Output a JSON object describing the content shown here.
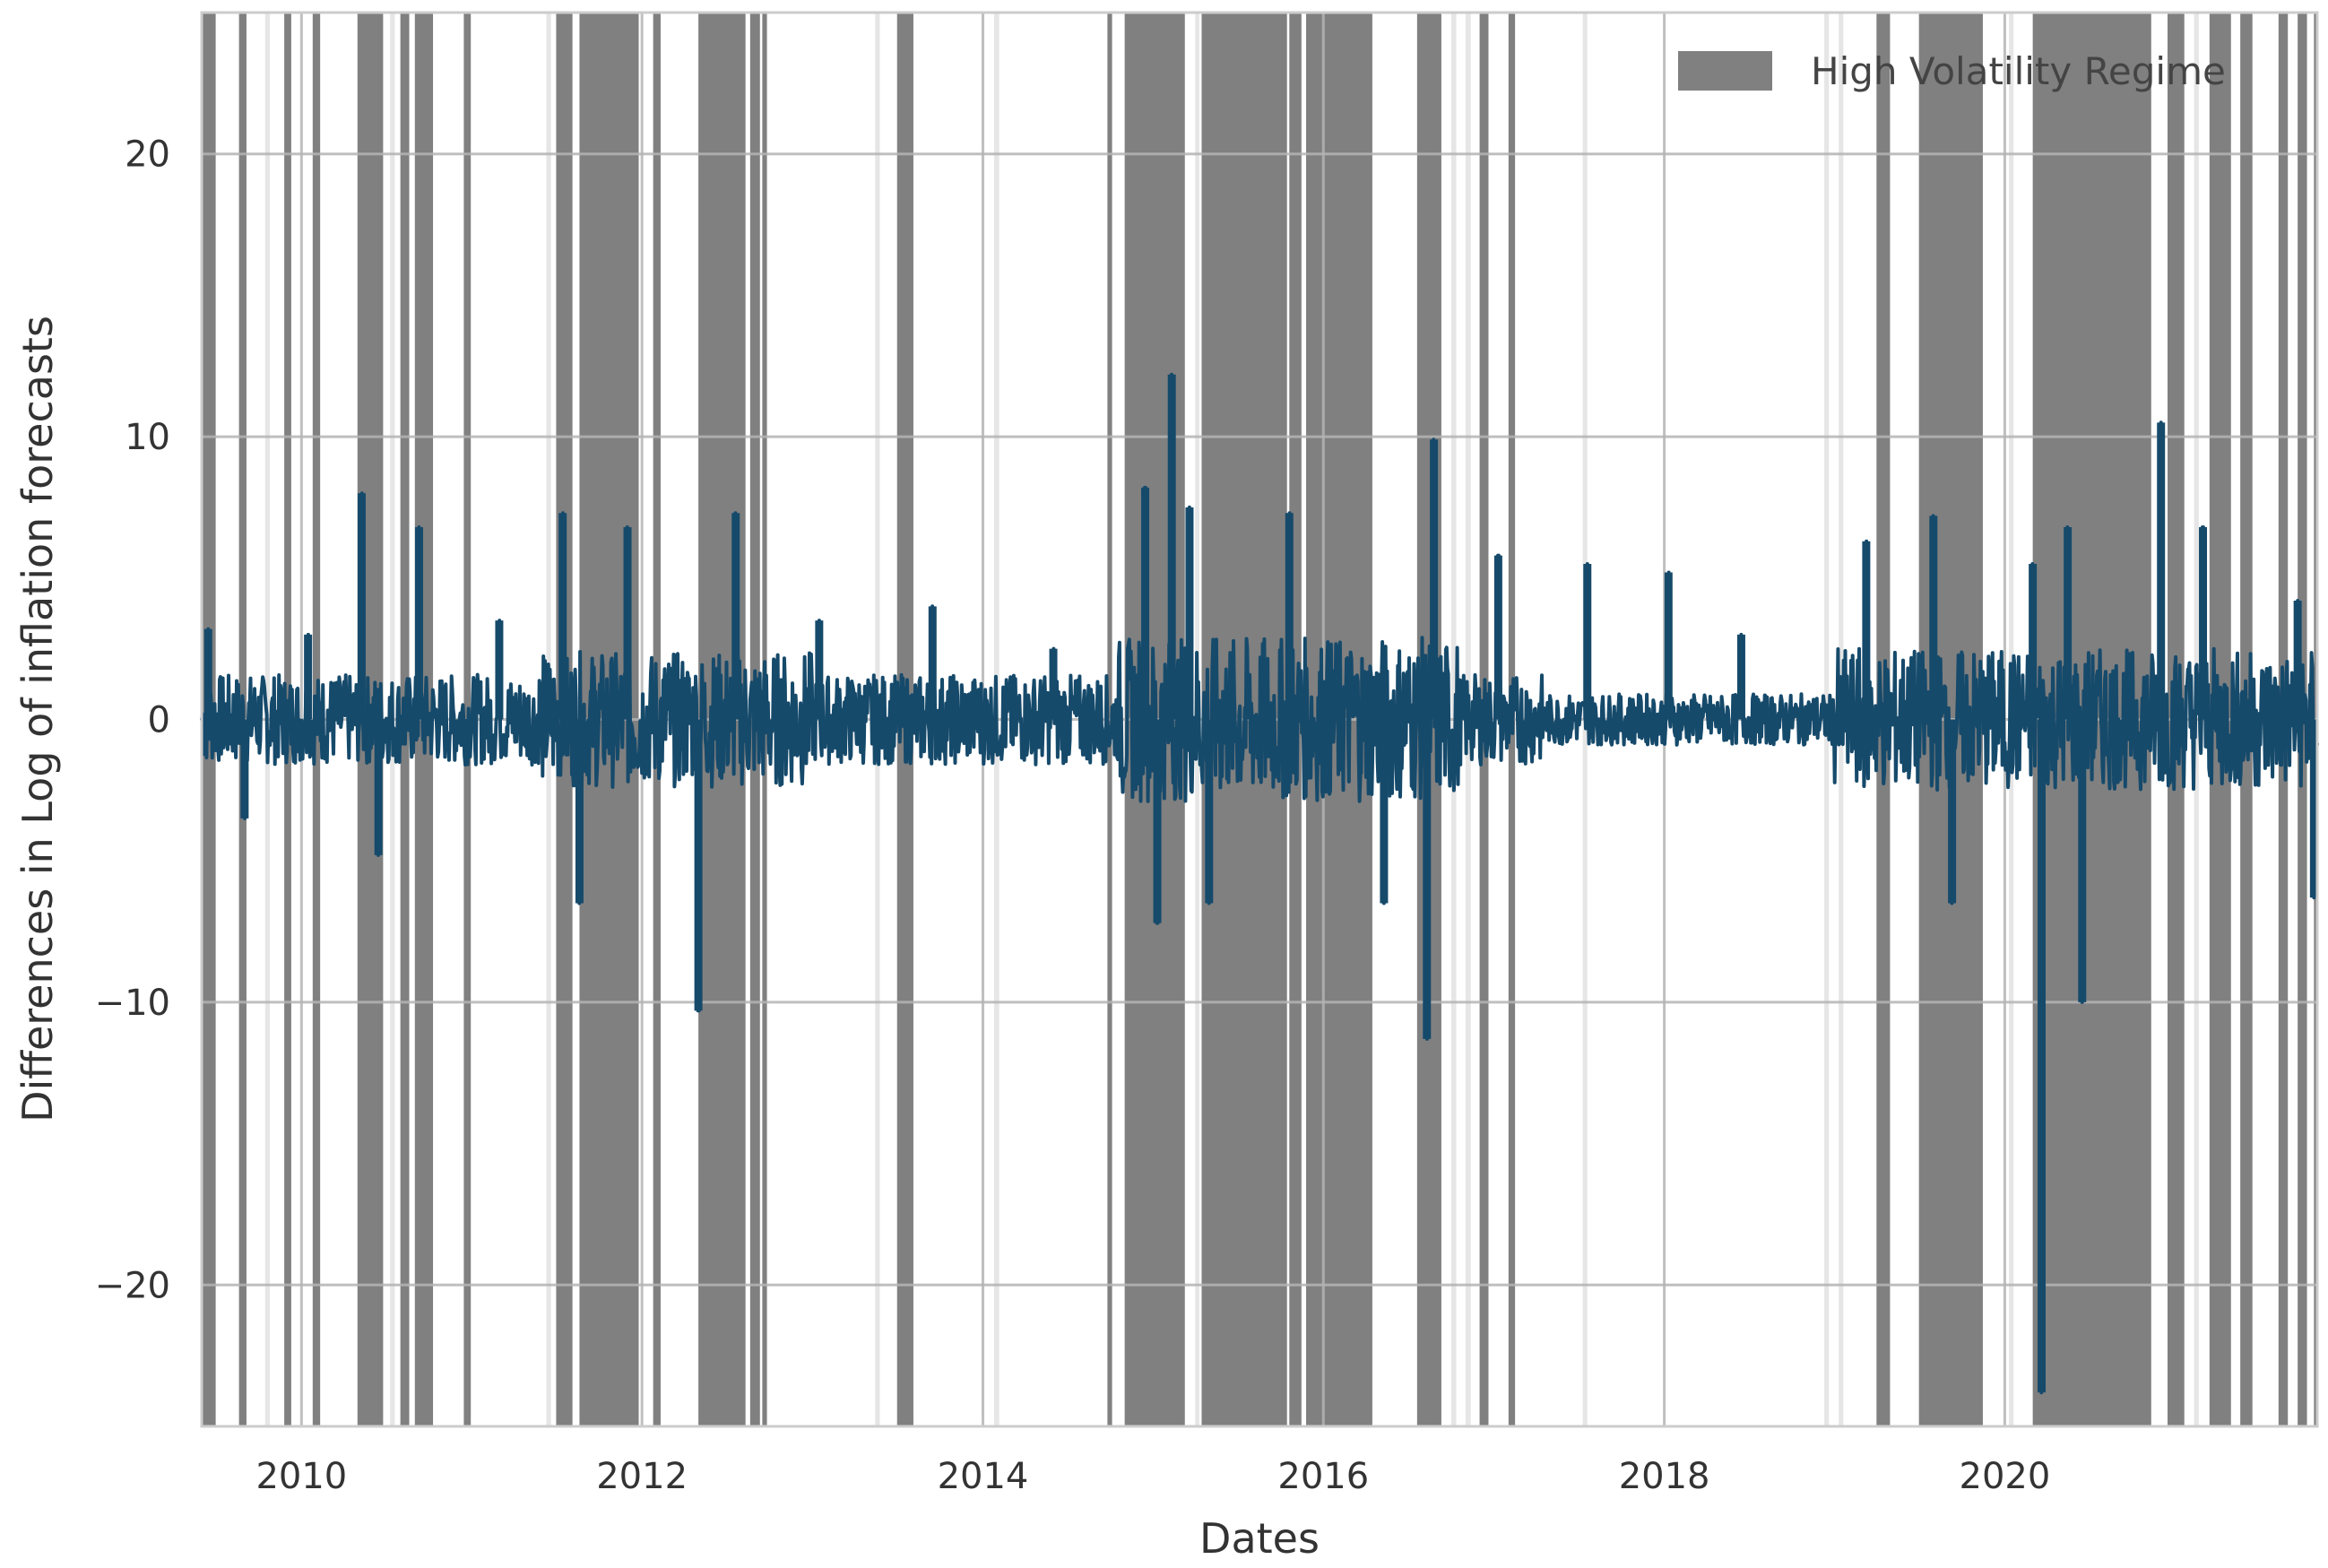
{
  "chart_data": {
    "type": "line",
    "title": "",
    "xlabel": "Dates",
    "ylabel": "Differences in Log of inflation forecasts",
    "x_range": [
      "2009-06-01",
      "2021-11-01"
    ],
    "ylim": [
      -25,
      25
    ],
    "x_ticks": [
      "2010",
      "2012",
      "2014",
      "2016",
      "2018",
      "2020"
    ],
    "y_ticks": [
      -20,
      -10,
      0,
      10,
      20
    ],
    "y_tick_labels": [
      "−20",
      "−10",
      "0",
      "10",
      "20"
    ],
    "grid": true,
    "legend_position": "top-right",
    "series": [
      {
        "name": "",
        "color": "#164a6b",
        "description_points": [
          {
            "x": "2009-06-15",
            "y": 3.2
          },
          {
            "x": "2009-09-01",
            "y": -3.5
          },
          {
            "x": "2010-01-15",
            "y": 3.0
          },
          {
            "x": "2010-05-10",
            "y": 8.0
          },
          {
            "x": "2010-06-15",
            "y": -4.8
          },
          {
            "x": "2010-09-10",
            "y": 6.8
          },
          {
            "x": "2011-03-01",
            "y": 3.5
          },
          {
            "x": "2011-07-15",
            "y": 7.3
          },
          {
            "x": "2011-08-20",
            "y": -6.5
          },
          {
            "x": "2011-12-01",
            "y": 6.8
          },
          {
            "x": "2012-05-01",
            "y": -10.3
          },
          {
            "x": "2012-07-20",
            "y": 7.3
          },
          {
            "x": "2013-01-15",
            "y": 3.5
          },
          {
            "x": "2013-09-15",
            "y": 4.0
          },
          {
            "x": "2014-06-01",
            "y": 2.5
          },
          {
            "x": "2014-12-15",
            "y": 8.2
          },
          {
            "x": "2015-01-10",
            "y": -7.2
          },
          {
            "x": "2015-02-10",
            "y": 12.2
          },
          {
            "x": "2015-03-20",
            "y": 7.5
          },
          {
            "x": "2015-05-01",
            "y": -6.5
          },
          {
            "x": "2015-10-20",
            "y": 7.3
          },
          {
            "x": "2016-05-10",
            "y": -6.5
          },
          {
            "x": "2016-08-10",
            "y": -11.3
          },
          {
            "x": "2016-08-25",
            "y": 9.9
          },
          {
            "x": "2017-01-10",
            "y": 5.8
          },
          {
            "x": "2017-07-20",
            "y": 5.5
          },
          {
            "x": "2018-01-10",
            "y": 5.2
          },
          {
            "x": "2018-06-15",
            "y": 3.0
          },
          {
            "x": "2019-03-10",
            "y": 6.3
          },
          {
            "x": "2019-08-01",
            "y": 7.2
          },
          {
            "x": "2019-09-10",
            "y": -6.5
          },
          {
            "x": "2020-03-01",
            "y": 5.5
          },
          {
            "x": "2020-03-20",
            "y": -23.8
          },
          {
            "x": "2020-05-15",
            "y": 6.8
          },
          {
            "x": "2020-06-15",
            "y": -10.0
          },
          {
            "x": "2020-12-01",
            "y": 10.5
          },
          {
            "x": "2021-03-01",
            "y": 6.8
          },
          {
            "x": "2021-09-20",
            "y": 4.2
          },
          {
            "x": "2021-10-25",
            "y": -6.3
          }
        ]
      }
    ],
    "regimes": {
      "name": "High Volatility Regime",
      "color": "#808080",
      "periods": [
        [
          "2009-06-01",
          "2009-07-01"
        ],
        [
          "2009-08-20",
          "2009-09-05"
        ],
        [
          "2009-11-25",
          "2009-12-10"
        ],
        [
          "2010-01-25",
          "2010-02-10"
        ],
        [
          "2010-05-01",
          "2010-06-25"
        ],
        [
          "2010-08-01",
          "2010-08-20"
        ],
        [
          "2010-09-01",
          "2010-10-10"
        ],
        [
          "2010-12-15",
          "2010-12-30"
        ],
        [
          "2011-07-01",
          "2011-08-05"
        ],
        [
          "2011-08-20",
          "2011-12-25"
        ],
        [
          "2012-01-25",
          "2012-02-10"
        ],
        [
          "2012-05-01",
          "2012-08-10"
        ],
        [
          "2012-08-20",
          "2012-09-10"
        ],
        [
          "2012-09-15",
          "2012-09-25"
        ],
        [
          "2013-07-01",
          "2013-08-05"
        ],
        [
          "2014-09-25",
          "2014-10-05"
        ],
        [
          "2014-11-01",
          "2015-03-10"
        ],
        [
          "2015-04-15",
          "2015-10-15"
        ],
        [
          "2015-10-20",
          "2015-11-15"
        ],
        [
          "2015-11-25",
          "2016-04-15"
        ],
        [
          "2016-07-20",
          "2016-09-10"
        ],
        [
          "2016-12-01",
          "2016-12-20"
        ],
        [
          "2017-02-01",
          "2017-02-15"
        ],
        [
          "2019-04-01",
          "2019-04-30"
        ],
        [
          "2019-07-01",
          "2019-11-15"
        ],
        [
          "2020-03-01",
          "2020-11-10"
        ],
        [
          "2020-12-15",
          "2021-01-20"
        ],
        [
          "2021-03-15",
          "2021-04-30"
        ],
        [
          "2021-05-20",
          "2021-06-15"
        ],
        [
          "2021-08-10",
          "2021-08-30"
        ],
        [
          "2021-09-20",
          "2021-10-10"
        ],
        [
          "2021-10-25",
          "2021-11-01"
        ]
      ]
    },
    "light_bands": [
      [
        "2009-10-15",
        "2009-10-25"
      ],
      [
        "2010-07-10",
        "2010-07-20"
      ],
      [
        "2011-06-10",
        "2011-06-20"
      ],
      [
        "2013-05-15",
        "2013-05-25"
      ],
      [
        "2014-01-25",
        "2014-02-05"
      ],
      [
        "2015-04-01",
        "2015-04-10"
      ],
      [
        "2016-10-01",
        "2016-10-12"
      ],
      [
        "2016-11-01",
        "2016-11-12"
      ],
      [
        "2017-07-10",
        "2017-07-20"
      ],
      [
        "2018-12-10",
        "2018-12-20"
      ],
      [
        "2019-01-10",
        "2019-01-20"
      ],
      [
        "2020-01-10",
        "2020-01-20"
      ],
      [
        "2021-02-10",
        "2021-02-20"
      ]
    ]
  }
}
